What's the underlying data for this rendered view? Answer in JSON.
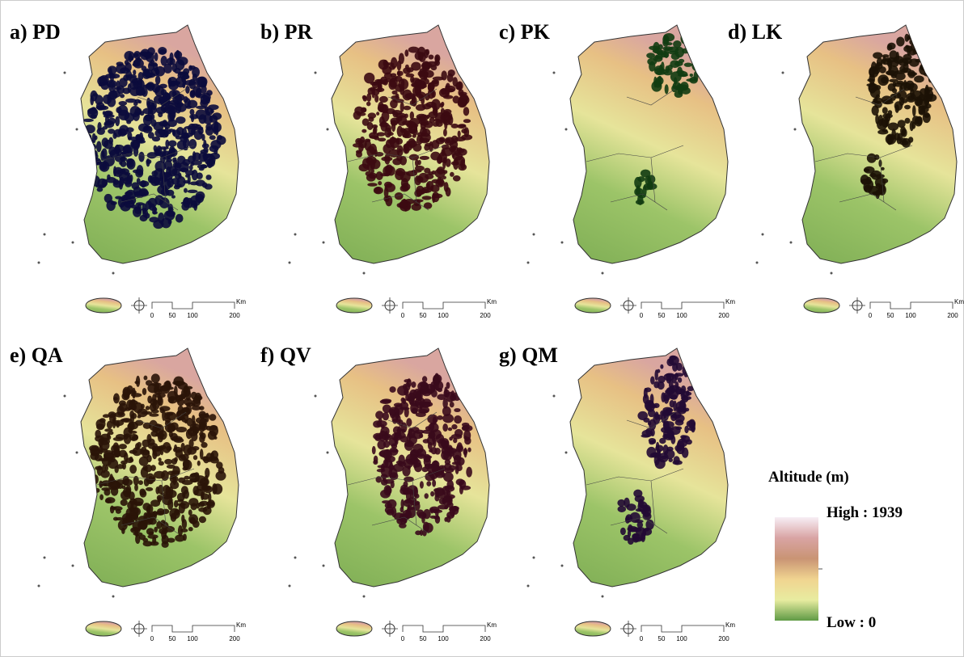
{
  "panels": [
    {
      "label": "a) PD",
      "color": "#0b0b3c"
    },
    {
      "label": "b) PR",
      "color": "#3c0a12"
    },
    {
      "label": "c) PK",
      "color": "#123c12"
    },
    {
      "label": "d) LK",
      "color": "#1c1206"
    },
    {
      "label": "e) QA",
      "color": "#2a1408"
    },
    {
      "label": "f) QV",
      "color": "#3a0a1c"
    },
    {
      "label": "g) QM",
      "color": "#220a34"
    }
  ],
  "scale_bar": {
    "labels": [
      "0",
      "50",
      "100",
      "200"
    ],
    "unit": "Km"
  },
  "legend": {
    "title": "Altitude (m)",
    "high": "High : 1939",
    "low": "Low : 0"
  }
}
